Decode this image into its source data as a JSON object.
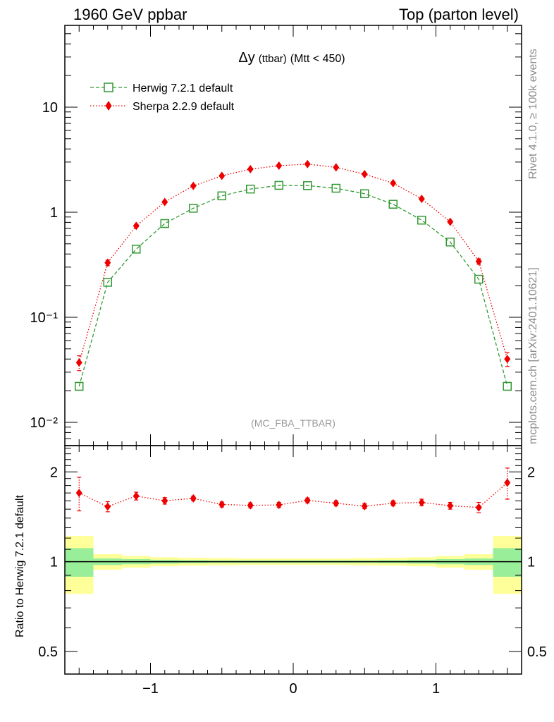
{
  "header": {
    "left": "1960 GeV ppbar",
    "right": "Top (parton level)"
  },
  "side_labels": {
    "rivet": "Rivet 4.1.0, ≥ 100k events",
    "mcplots": "mcplots.cern.ch [arXiv:2401.10621]"
  },
  "chart_data": {
    "type": "line",
    "title": "Δy (ttbar) (Mtt < 450)",
    "title_parts": {
      "symbol": "Δy",
      "sub": "(ttbar)",
      "rest": "(Mtt < 450)"
    },
    "watermark": "(MC_FBA_TTBAR)",
    "xlabel": "",
    "ylabel": "",
    "xlim": [
      -1.6,
      1.6
    ],
    "ylim": [
      0.006,
      60
    ],
    "yscale": "log",
    "x": [
      -1.5,
      -1.3,
      -1.1,
      -0.9,
      -0.7,
      -0.5,
      -0.3,
      -0.1,
      0.1,
      0.3,
      0.5,
      0.7,
      0.9,
      1.1,
      1.3,
      1.5
    ],
    "x_bin_edges": [
      -1.6,
      -1.4,
      -1.2,
      -1.0,
      -0.8,
      -0.6,
      -0.4,
      -0.2,
      0.0,
      0.2,
      0.4,
      0.6,
      0.8,
      1.0,
      1.2,
      1.4,
      1.6
    ],
    "x_ticks": [
      {
        "value": -1,
        "label": "−1"
      },
      {
        "value": 0,
        "label": "0"
      },
      {
        "value": 1,
        "label": "1"
      }
    ],
    "y_ticks": [
      {
        "value": 10,
        "label": "10"
      },
      {
        "value": 1,
        "label": "1"
      },
      {
        "value": 0.1,
        "label": "10⁻¹"
      },
      {
        "value": 0.01,
        "label": "10⁻²"
      }
    ],
    "legend_position": "top-left",
    "series": [
      {
        "name": "Herwig 7.2.1 default",
        "color": "#339933",
        "marker": "open-square",
        "linestyle": "dashed",
        "values": [
          0.022,
          0.215,
          0.445,
          0.78,
          1.09,
          1.43,
          1.66,
          1.8,
          1.79,
          1.69,
          1.5,
          1.19,
          0.84,
          0.52,
          0.23,
          0.022
        ]
      },
      {
        "name": "Sherpa 2.2.9 default",
        "color": "#ee0000",
        "marker": "filled-diamond",
        "linestyle": "dotted",
        "values": [
          0.037,
          0.33,
          0.74,
          1.25,
          1.78,
          2.22,
          2.57,
          2.77,
          2.87,
          2.67,
          2.3,
          1.89,
          1.34,
          0.81,
          0.34,
          0.04
        ],
        "errors": [
          0.006,
          0.02,
          0.02,
          0.03,
          0.04,
          0.04,
          0.05,
          0.05,
          0.05,
          0.05,
          0.04,
          0.04,
          0.03,
          0.02,
          0.02,
          0.006
        ]
      }
    ],
    "ratio": {
      "ylabel": "Ratio to Herwig 7.2.1 default",
      "ylim": [
        0.42,
        2.45
      ],
      "yscale": "log",
      "y_ticks": [
        {
          "value": 2,
          "label": "2"
        },
        {
          "value": 1,
          "label": "1"
        },
        {
          "value": 0.5,
          "label": "0.5"
        }
      ],
      "reference_line": 1,
      "band_inner": [
        0.11,
        0.025,
        0.02,
        0.015,
        0.012,
        0.01,
        0.01,
        0.01,
        0.01,
        0.01,
        0.01,
        0.012,
        0.015,
        0.02,
        0.025,
        0.11
      ],
      "band_outer": [
        0.22,
        0.06,
        0.045,
        0.035,
        0.03,
        0.028,
        0.025,
        0.025,
        0.025,
        0.025,
        0.028,
        0.03,
        0.035,
        0.045,
        0.06,
        0.22
      ],
      "band_colors": {
        "inner": "#99ee99",
        "outer": "#ffff99"
      },
      "series": [
        {
          "name": "Sherpa 2.2.9 default",
          "color": "#ee0000",
          "values": [
            1.7,
            1.53,
            1.66,
            1.6,
            1.63,
            1.555,
            1.545,
            1.55,
            1.605,
            1.57,
            1.535,
            1.57,
            1.58,
            1.54,
            1.52,
            1.84
          ],
          "errors": [
            0.22,
            0.06,
            0.05,
            0.04,
            0.03,
            0.03,
            0.03,
            0.03,
            0.03,
            0.03,
            0.03,
            0.03,
            0.04,
            0.04,
            0.06,
            0.22
          ]
        }
      ]
    }
  }
}
